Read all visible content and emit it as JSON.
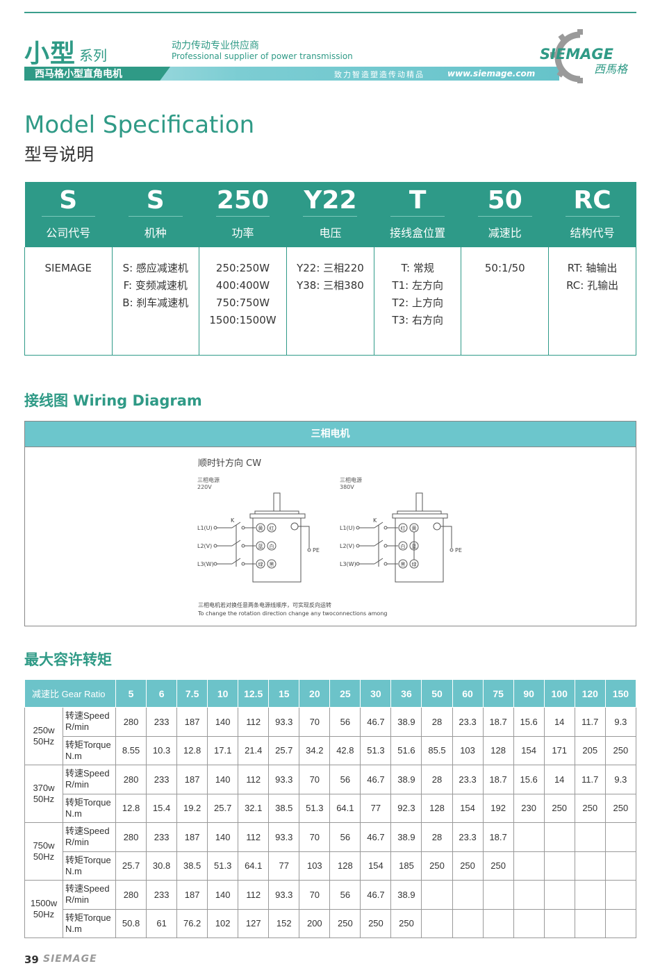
{
  "header": {
    "series_big": "小型",
    "series_small": "系列",
    "slogan_cn": "动力传动专业供应商",
    "slogan_en": "Professional supplier of power transmission",
    "band_title": "西马格小型直角电机",
    "band_motto": "致力智造塑造传动精品",
    "url": "www.siemage.com",
    "logo_en": "SIEMAGE",
    "logo_cn": "西馬格"
  },
  "model_spec": {
    "title_en": "Model Specification",
    "title_cn": "型号说明",
    "columns": [
      {
        "code": "S",
        "label": "公司代号",
        "values": [
          "SIEMAGE"
        ]
      },
      {
        "code": "S",
        "label": "机种",
        "values": [
          "S: 感应减速机",
          "F: 变频减速机",
          "B: 刹车减速机"
        ]
      },
      {
        "code": "250",
        "label": "功率",
        "values": [
          "250:250W",
          "400:400W",
          "750:750W",
          "1500:1500W"
        ]
      },
      {
        "code": "Y22",
        "label": "电压",
        "values": [
          "Y22: 三相220",
          "Y38: 三相380"
        ]
      },
      {
        "code": "T",
        "label": "接线盒位置",
        "values": [
          "T: 常规",
          "T1: 左方向",
          "T2: 上方向",
          "T3: 右方向"
        ]
      },
      {
        "code": "50",
        "label": "减速比",
        "values": [
          "50:1/50"
        ]
      },
      {
        "code": "RC",
        "label": "结构代号",
        "values": [
          "RT: 轴输出",
          "RC: 孔输出"
        ]
      }
    ]
  },
  "wiring": {
    "title": "接线图 Wiring Diagram",
    "box_title": "三相电机",
    "direction": "顺时针方向 CW",
    "left": {
      "supply": "三相电源",
      "voltage": "220V",
      "terminals": [
        [
          "黄",
          "红"
        ],
        [
          "蓝",
          "白"
        ],
        [
          "绿",
          "黑"
        ]
      ]
    },
    "right": {
      "supply": "三相电源",
      "voltage": "380V",
      "terminals": [
        [
          "红",
          "黄"
        ],
        [
          "白",
          "蓝"
        ],
        [
          "黑",
          "绿"
        ]
      ]
    },
    "lines": [
      "L1(U)",
      "L2(V)",
      "L3(W)"
    ],
    "switch": "K",
    "pe": "PE",
    "note_cn": "三相电机若对换任意两条电源线顺序，可实现反向运转",
    "note_en": "To change the rotation direction change any twoconnections among"
  },
  "torque_table": {
    "title": "最大容许转矩",
    "header_label": "减速比 Gear Ratio",
    "ratios": [
      "5",
      "6",
      "7.5",
      "10",
      "12.5",
      "15",
      "20",
      "25",
      "30",
      "36",
      "50",
      "60",
      "75",
      "90",
      "100",
      "120",
      "150"
    ],
    "groups": [
      {
        "power": "250w",
        "freq": "50Hz",
        "rows": [
          {
            "l1": "转速Speed",
            "l2": "R/min",
            "values": [
              "280",
              "233",
              "187",
              "140",
              "112",
              "93.3",
              "70",
              "56",
              "46.7",
              "38.9",
              "28",
              "23.3",
              "18.7",
              "15.6",
              "14",
              "11.7",
              "9.3"
            ]
          },
          {
            "l1": "转矩Torque",
            "l2": "N.m",
            "values": [
              "8.55",
              "10.3",
              "12.8",
              "17.1",
              "21.4",
              "25.7",
              "34.2",
              "42.8",
              "51.3",
              "51.6",
              "85.5",
              "103",
              "128",
              "154",
              "171",
              "205",
              "250"
            ]
          }
        ]
      },
      {
        "power": "370w",
        "freq": "50Hz",
        "rows": [
          {
            "l1": "转速Speed",
            "l2": "R/min",
            "values": [
              "280",
              "233",
              "187",
              "140",
              "112",
              "93.3",
              "70",
              "56",
              "46.7",
              "38.9",
              "28",
              "23.3",
              "18.7",
              "15.6",
              "14",
              "11.7",
              "9.3"
            ]
          },
          {
            "l1": "转矩Torque",
            "l2": "N.m",
            "values": [
              "12.8",
              "15.4",
              "19.2",
              "25.7",
              "32.1",
              "38.5",
              "51.3",
              "64.1",
              "77",
              "92.3",
              "128",
              "154",
              "192",
              "230",
              "250",
              "250",
              "250"
            ]
          }
        ]
      },
      {
        "power": "750w",
        "freq": "50Hz",
        "rows": [
          {
            "l1": "转速Speed",
            "l2": "R/min",
            "values": [
              "280",
              "233",
              "187",
              "140",
              "112",
              "93.3",
              "70",
              "56",
              "46.7",
              "38.9",
              "28",
              "23.3",
              "18.7",
              "",
              "",
              "",
              ""
            ]
          },
          {
            "l1": "转矩Torque",
            "l2": "N.m",
            "values": [
              "25.7",
              "30.8",
              "38.5",
              "51.3",
              "64.1",
              "77",
              "103",
              "128",
              "154",
              "185",
              "250",
              "250",
              "250",
              "",
              "",
              "",
              ""
            ]
          }
        ]
      },
      {
        "power": "1500w",
        "freq": "50Hz",
        "rows": [
          {
            "l1": "转速Speed",
            "l2": "R/min",
            "values": [
              "280",
              "233",
              "187",
              "140",
              "112",
              "93.3",
              "70",
              "56",
              "46.7",
              "38.9",
              "",
              "",
              "",
              "",
              "",
              "",
              ""
            ]
          },
          {
            "l1": "转矩Torque",
            "l2": "N.m",
            "values": [
              "50.8",
              "61",
              "76.2",
              "102",
              "127",
              "152",
              "200",
              "250",
              "250",
              "250",
              "",
              "",
              "",
              "",
              "",
              "",
              ""
            ]
          }
        ]
      }
    ]
  },
  "footer": {
    "page": "39",
    "logo": "SIEMAGE"
  },
  "colors": {
    "brand": "#2f9a86",
    "header_teal": "#2e9a88",
    "light_teal": "#6cc3c9"
  }
}
